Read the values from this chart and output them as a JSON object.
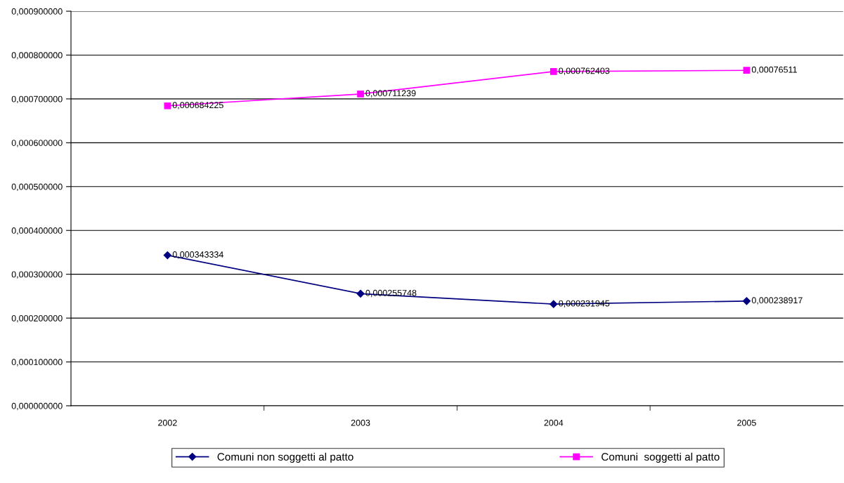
{
  "chart_data": {
    "type": "line",
    "categories": [
      "2002",
      "2003",
      "2004",
      "2005"
    ],
    "series": [
      {
        "name": "Comuni non soggetti al patto",
        "color": "#000080",
        "marker": "diamond",
        "values": [
          0.000343334,
          0.000255748,
          0.000231945,
          0.000238917
        ],
        "value_labels": [
          "0,000343334",
          "0,000255748",
          "0,000231945",
          "0,000238917"
        ]
      },
      {
        "name": "Comuni  soggetti al patto",
        "color": "#ff00ff",
        "marker": "square",
        "values": [
          0.000684225,
          0.000711239,
          0.000762403,
          0.00076511
        ],
        "value_labels": [
          "0,000684225",
          "0,000711239",
          "0,000762403",
          "0,00076511"
        ]
      }
    ],
    "ylim": [
      0,
      0.0009
    ],
    "yticks": [
      {
        "value": 0,
        "label": "0,000000000"
      },
      {
        "value": 0.0001,
        "label": "0,000100000"
      },
      {
        "value": 0.0002,
        "label": "0,000200000"
      },
      {
        "value": 0.0003,
        "label": "0,000300000"
      },
      {
        "value": 0.0004,
        "label": "0,000400000"
      },
      {
        "value": 0.0005,
        "label": "0,000500000"
      },
      {
        "value": 0.0006,
        "label": "0,000600000"
      },
      {
        "value": 0.0007,
        "label": "0,000700000"
      },
      {
        "value": 0.0008,
        "label": "0,000800000"
      },
      {
        "value": 0.0009,
        "label": "0,000900000"
      }
    ],
    "grid": "y",
    "legend": "bottom",
    "line_style": "solid"
  }
}
